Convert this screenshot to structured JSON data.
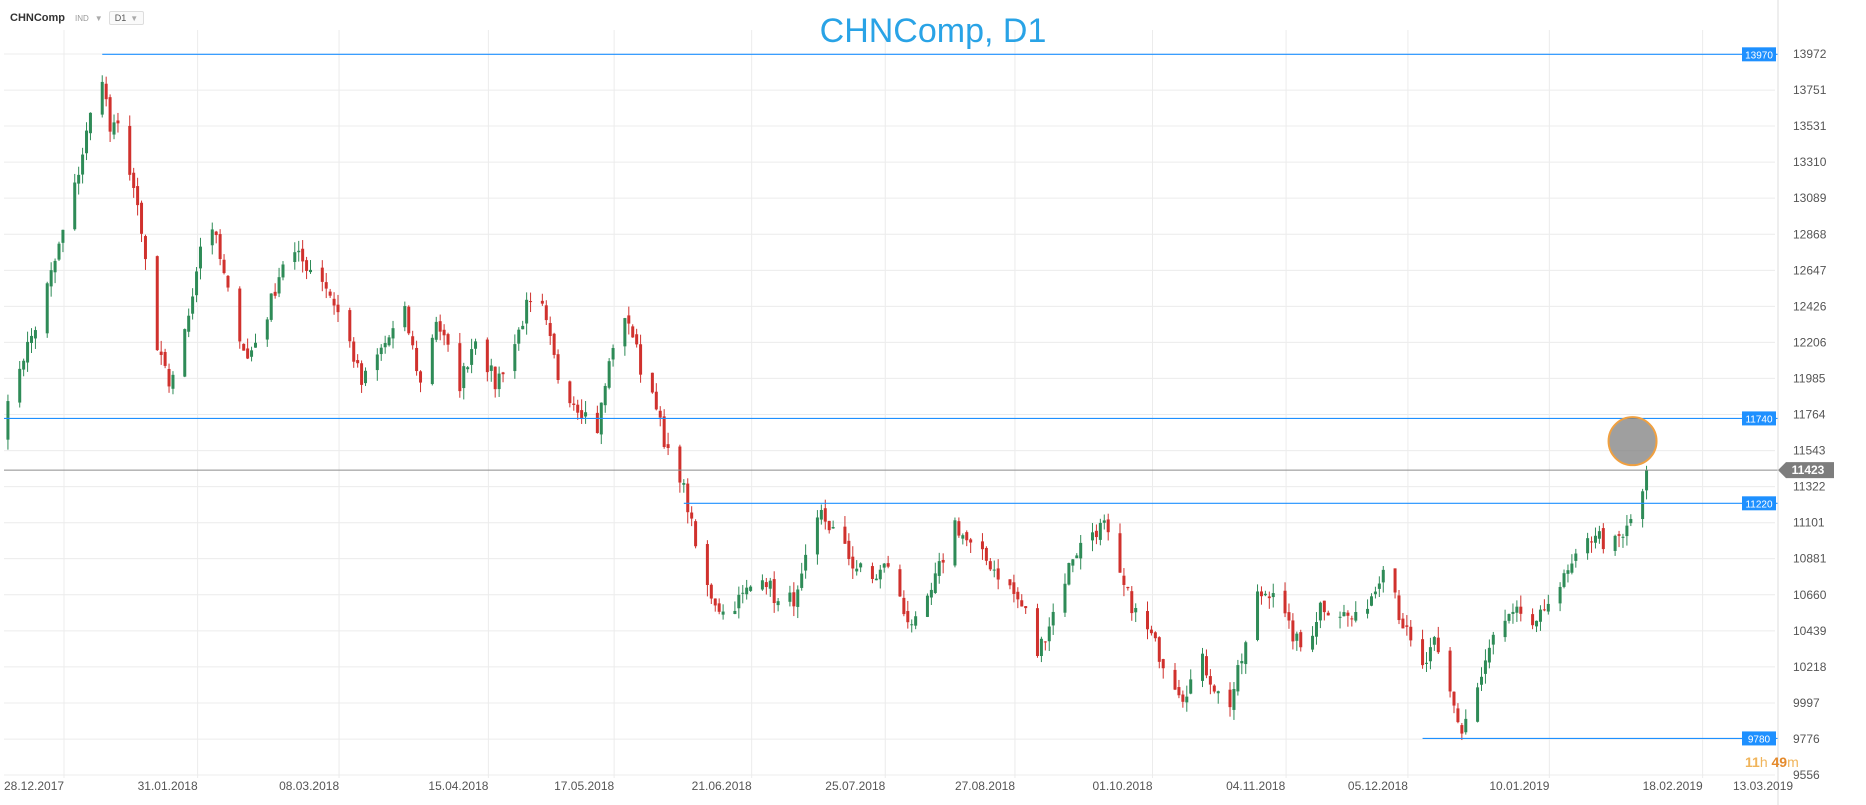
{
  "toolbar": {
    "symbol": "CHNComp",
    "symbol_type": "IND",
    "timeframe": "D1"
  },
  "timer": {
    "hours": "11",
    "hours_unit": "h",
    "minutes": "49",
    "minutes_unit": "m"
  },
  "colors": {
    "up": "#2e8b57",
    "down": "#d0312d",
    "level_line": "#1e90ff",
    "current_price_line": "#8c8c8c",
    "current_price_badge": "#7d7d7d",
    "title": "#29a3e6",
    "grid": "#ececec",
    "highlight_fill": "#7f7f7f",
    "highlight_stroke": "#f0a040",
    "timer_hours": "#f0b45a",
    "timer_minutes": "#e48a2c"
  },
  "chart_data": {
    "type": "candlestick",
    "title": "CHNComp, D1",
    "ylim": [
      9556,
      14100
    ],
    "y_ticks": [
      "13972",
      "13751",
      "13531",
      "13310",
      "13089",
      "12868",
      "12647",
      "12426",
      "12206",
      "11985",
      "11764",
      "11543",
      "11322",
      "11101",
      "10881",
      "10660",
      "10439",
      "10218",
      "9997",
      "9776",
      "9556"
    ],
    "x_tick_labels": [
      "28.12.2017",
      "31.01.2018",
      "08.03.2018",
      "15.04.2018",
      "17.05.2018",
      "21.06.2018",
      "25.07.2018",
      "27.08.2018",
      "01.10.2018",
      "04.11.2018",
      "05.12.2018",
      "10.01.2019",
      "18.02.2019",
      "13.03.2019"
    ],
    "grid": "on",
    "current_price": "11423",
    "levels": [
      {
        "value": "13970",
        "start_date": "22.01.2018"
      },
      {
        "value": "11740",
        "start_date": "28.12.2017"
      },
      {
        "value": "11220",
        "start_date": "19.06.2018"
      },
      {
        "value": "9780",
        "start_date": "24.12.2018"
      }
    ],
    "highlight_date": "19.02.2019",
    "anchors": [
      [
        "28.12.2017",
        11650,
        "up"
      ],
      [
        "30.12.2017",
        11950,
        "up"
      ],
      [
        "05.01.2018",
        12300,
        "up"
      ],
      [
        "10.01.2018",
        12700,
        "up"
      ],
      [
        "15.01.2018",
        13150,
        "up"
      ],
      [
        "18.01.2018",
        13480,
        "up"
      ],
      [
        "20.01.2018",
        13700,
        "up"
      ],
      [
        "22.01.2018",
        13850,
        "up"
      ],
      [
        "24.01.2018",
        13500,
        "down"
      ],
      [
        "27.01.2018",
        13520,
        "up"
      ],
      [
        "30.01.2018",
        13150,
        "down"
      ],
      [
        "02.02.2018",
        12700,
        "down"
      ],
      [
        "05.02.2018",
        12150,
        "down"
      ],
      [
        "08.02.2018",
        11950,
        "down"
      ],
      [
        "12.02.2018",
        12250,
        "up"
      ],
      [
        "16.02.2018",
        12800,
        "up"
      ],
      [
        "19.02.2018",
        12920,
        "up"
      ],
      [
        "23.02.2018",
        12500,
        "down"
      ],
      [
        "28.02.2018",
        12100,
        "down"
      ],
      [
        "05.03.2018",
        12380,
        "up"
      ],
      [
        "10.03.2018",
        12780,
        "up"
      ],
      [
        "14.03.2018",
        12700,
        "down"
      ],
      [
        "19.03.2018",
        12600,
        "down"
      ],
      [
        "22.03.2018",
        12450,
        "down"
      ],
      [
        "26.03.2018",
        12200,
        "down"
      ],
      [
        "29.03.2018",
        11950,
        "down"
      ],
      [
        "04.04.2018",
        12200,
        "up"
      ],
      [
        "09.04.2018",
        12380,
        "up"
      ],
      [
        "13.04.2018",
        11950,
        "down"
      ],
      [
        "17.04.2018",
        12350,
        "up"
      ],
      [
        "23.04.2018",
        11950,
        "down"
      ],
      [
        "27.04.2018",
        12250,
        "up"
      ],
      [
        "02.05.2018",
        11950,
        "down"
      ],
      [
        "07.05.2018",
        12200,
        "up"
      ],
      [
        "10.05.2018",
        12420,
        "up"
      ],
      [
        "14.05.2018",
        12400,
        "down"
      ],
      [
        "18.05.2018",
        12000,
        "down"
      ],
      [
        "22.05.2018",
        11850,
        "down"
      ],
      [
        "28.05.2018",
        11680,
        "down"
      ],
      [
        "01.06.2018",
        12200,
        "up"
      ],
      [
        "05.06.2018",
        12350,
        "up"
      ],
      [
        "08.06.2018",
        12050,
        "down"
      ],
      [
        "12.06.2018",
        11850,
        "down"
      ],
      [
        "14.06.2018",
        11550,
        "down"
      ],
      [
        "18.06.2018",
        11400,
        "down"
      ],
      [
        "20.06.2018",
        11200,
        "down"
      ],
      [
        "22.06.2018",
        10950,
        "down"
      ],
      [
        "25.06.2018",
        10700,
        "down"
      ],
      [
        "29.06.2018",
        10550,
        "down"
      ],
      [
        "04.07.2018",
        10650,
        "up"
      ],
      [
        "09.07.2018",
        10800,
        "up"
      ],
      [
        "13.07.2018",
        10600,
        "down"
      ],
      [
        "18.07.2018",
        10650,
        "up"
      ],
      [
        "21.07.2018",
        10950,
        "up"
      ],
      [
        "24.07.2018",
        11150,
        "up"
      ],
      [
        "27.07.2018",
        11050,
        "down"
      ],
      [
        "01.08.2018",
        10850,
        "down"
      ],
      [
        "06.08.2018",
        10750,
        "down"
      ],
      [
        "10.08.2018",
        10850,
        "up"
      ],
      [
        "14.08.2018",
        10550,
        "down"
      ],
      [
        "18.08.2018",
        10450,
        "down"
      ],
      [
        "22.08.2018",
        10750,
        "up"
      ],
      [
        "27.08.2018",
        11100,
        "up"
      ],
      [
        "31.08.2018",
        10950,
        "down"
      ],
      [
        "05.09.2018",
        10850,
        "down"
      ],
      [
        "10.09.2018",
        10700,
        "down"
      ],
      [
        "14.09.2018",
        10550,
        "down"
      ],
      [
        "17.09.2018",
        10300,
        "down"
      ],
      [
        "21.09.2018",
        10550,
        "up"
      ],
      [
        "26.09.2018",
        10900,
        "up"
      ],
      [
        "01.10.2018",
        11050,
        "up"
      ],
      [
        "04.10.2018",
        11080,
        "up"
      ],
      [
        "08.10.2018",
        10750,
        "down"
      ],
      [
        "12.10.2018",
        10550,
        "down"
      ],
      [
        "16.10.2018",
        10400,
        "down"
      ],
      [
        "20.10.2018",
        10200,
        "down"
      ],
      [
        "24.10.2018",
        10050,
        "down"
      ],
      [
        "29.10.2018",
        10250,
        "up"
      ],
      [
        "02.11.2018",
        10050,
        "down"
      ],
      [
        "05.11.2018",
        10000,
        "down"
      ],
      [
        "09.11.2018",
        10350,
        "up"
      ],
      [
        "12.11.2018",
        10650,
        "up"
      ],
      [
        "16.11.2018",
        10700,
        "up"
      ],
      [
        "20.11.2018",
        10450,
        "down"
      ],
      [
        "24.11.2018",
        10300,
        "down"
      ],
      [
        "28.11.2018",
        10600,
        "up"
      ],
      [
        "03.12.2018",
        10550,
        "up"
      ],
      [
        "07.12.2018",
        10500,
        "down"
      ],
      [
        "12.12.2018",
        10700,
        "up"
      ],
      [
        "15.12.2018",
        10950,
        "up"
      ],
      [
        "18.12.2018",
        10550,
        "down"
      ],
      [
        "21.12.2018",
        10350,
        "down"
      ],
      [
        "24.12.2018",
        10200,
        "down"
      ],
      [
        "27.12.2018",
        10350,
        "up"
      ],
      [
        "31.12.2018",
        10050,
        "down"
      ],
      [
        "03.01.2019",
        9820,
        "down"
      ],
      [
        "05.01.2019",
        9980,
        "up"
      ],
      [
        "08.01.2019",
        10150,
        "up"
      ],
      [
        "11.01.2019",
        10400,
        "up"
      ],
      [
        "15.01.2019",
        10500,
        "up"
      ],
      [
        "18.01.2019",
        10550,
        "up"
      ],
      [
        "22.01.2019",
        10450,
        "down"
      ],
      [
        "25.01.2019",
        10650,
        "up"
      ],
      [
        "29.01.2019",
        10750,
        "up"
      ],
      [
        "02.02.2019",
        10900,
        "up"
      ],
      [
        "06.02.2019",
        11050,
        "up"
      ],
      [
        "09.02.2019",
        10950,
        "down"
      ],
      [
        "13.02.2019",
        11000,
        "up"
      ],
      [
        "16.02.2019",
        11180,
        "up"
      ],
      [
        "18.02.2019",
        11300,
        "up"
      ],
      [
        "19.02.2019",
        11423,
        "up"
      ]
    ]
  }
}
